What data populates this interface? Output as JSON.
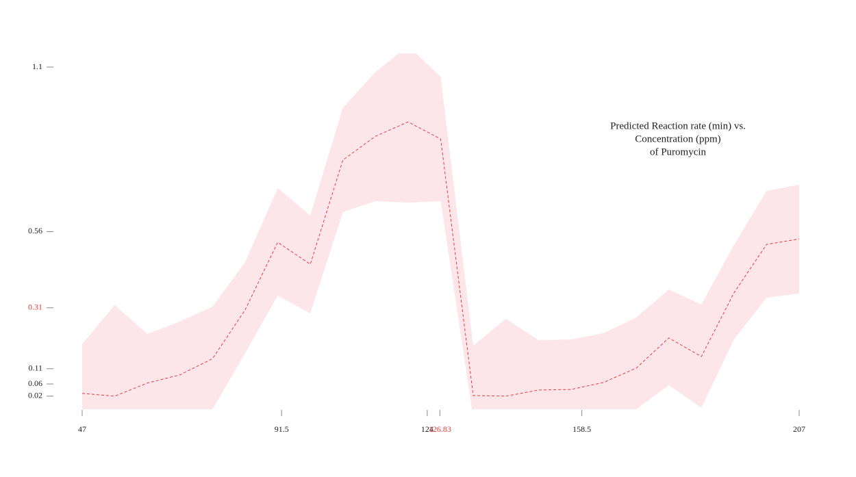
{
  "chart_data": {
    "type": "line",
    "title": [
      "Predicted Reaction rate (min) vs.",
      "Concentration (ppm)",
      "of Puromycin"
    ],
    "x": [
      47,
      54.27,
      61.55,
      68.82,
      76.09,
      83.36,
      90.64,
      97.91,
      105.18,
      112.45,
      119.73,
      127,
      134.27,
      141.55,
      148.82,
      156.09,
      163.36,
      170.64,
      177.91,
      185.18,
      192.45,
      199.73,
      207
    ],
    "series": [
      {
        "color": "#e8393b",
        "values": [
          0.029,
          0.02,
          0.063,
          0.09,
          0.143,
          0.303,
          0.525,
          0.453,
          0.795,
          0.873,
          0.92,
          0.864,
          0.022,
          0.02,
          0.04,
          0.042,
          0.065,
          0.112,
          0.211,
          0.15,
          0.359,
          0.518,
          0.536
        ],
        "upper": [
          0.191,
          0.319,
          0.224,
          0.265,
          0.314,
          0.46,
          0.703,
          0.613,
          0.967,
          1.084,
          1.17,
          1.068,
          0.186,
          0.274,
          0.204,
          0.206,
          0.227,
          0.278,
          0.37,
          0.321,
          0.516,
          0.694,
          0.714
        ],
        "lower": [
          -0.15,
          -0.14,
          -0.12,
          -0.09,
          -0.023,
          0.161,
          0.35,
          0.292,
          0.624,
          0.66,
          0.655,
          0.66,
          -0.05,
          -0.08,
          -0.06,
          -0.05,
          -0.04,
          -0.023,
          0.056,
          -0.018,
          0.206,
          0.343,
          0.357
        ],
        "band_color": "#fde6ea"
      }
    ],
    "xlim": [
      47,
      207
    ],
    "ylim": [
      -0.023,
      1.145
    ],
    "xticks": [
      47,
      91.5,
      124,
      158.5,
      207
    ],
    "x_highlight": 126.83,
    "yticks": [
      0.02,
      0.06,
      0.11,
      0.56,
      1.1
    ],
    "y_highlight": 0.31,
    "highlight_color": "#e8393b"
  }
}
